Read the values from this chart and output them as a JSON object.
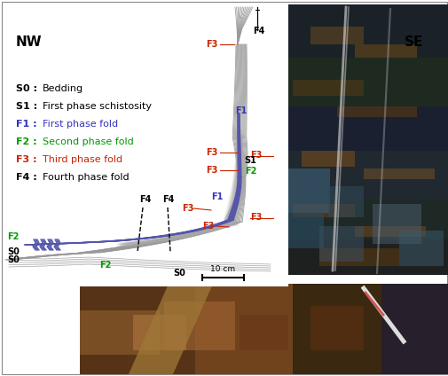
{
  "background_color": "#ffffff",
  "border_color": "#888888",
  "nw_label": "NW",
  "se_label": "SE",
  "legend_items": [
    {
      "label": "S0",
      "desc": "Bedding",
      "color": "#000000"
    },
    {
      "label": "S1",
      "desc": "First phase schistosity",
      "color": "#000000"
    },
    {
      "label": "F1",
      "desc": "First phase fold",
      "color": "#3333bb"
    },
    {
      "label": "F2",
      "desc": "Second phase fold",
      "color": "#009900"
    },
    {
      "label": "F3",
      "desc": "Third phase fold",
      "color": "#cc2200"
    },
    {
      "label": "F4",
      "desc": "Fourth phase fold",
      "color": "#000000"
    }
  ],
  "scale_bar_label": "10 cm",
  "fold_color": "#999999",
  "blue_band_color": "#5555aa",
  "gray_band_color": "#aaaaaa"
}
